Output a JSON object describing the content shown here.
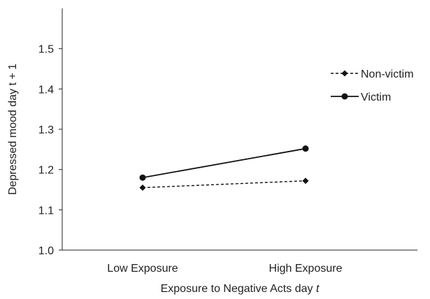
{
  "chart_data": {
    "type": "line",
    "title": "",
    "xlabel": "Exposure to Negative Acts day ",
    "xlabel_italic": "t",
    "ylabel": "Depressed mood day t + 1",
    "categories": [
      "Low Exposure",
      "High Exposure"
    ],
    "ylim": [
      1.0,
      1.6
    ],
    "yticks": [
      "1.0",
      "1.1",
      "1.2",
      "1.3",
      "1.4",
      "1.5"
    ],
    "grid": false,
    "legend_position": "right",
    "series": [
      {
        "name": "Non-victim",
        "values": [
          1.155,
          1.172
        ],
        "line_style": "dashed",
        "marker": "diamond",
        "color": "#111111"
      },
      {
        "name": "Victim",
        "values": [
          1.18,
          1.252
        ],
        "line_style": "solid",
        "marker": "circle",
        "color": "#111111"
      }
    ]
  }
}
